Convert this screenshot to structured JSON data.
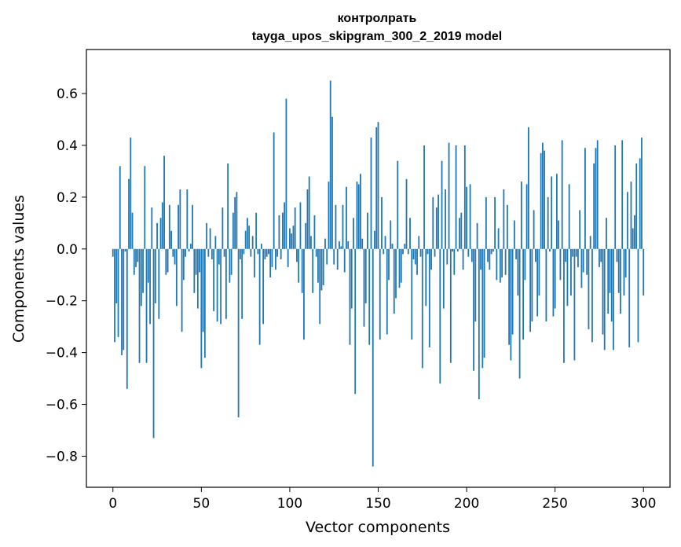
{
  "chart_data": {
    "type": "bar",
    "title": "контролрать",
    "subtitle": "tayga_upos_skipgram_300_2_2019 model",
    "xlabel": "Vector components",
    "ylabel": "Components values",
    "xlim": [
      -15,
      315
    ],
    "ylim": [
      -0.92,
      0.77
    ],
    "xticks": [
      0,
      50,
      100,
      150,
      200,
      250,
      300
    ],
    "xtick_labels": [
      "0",
      "50",
      "100",
      "150",
      "200",
      "250",
      "300"
    ],
    "yticks": [
      -0.8,
      -0.6,
      -0.4,
      -0.2,
      0.0,
      0.2,
      0.4,
      0.6
    ],
    "ytick_labels": [
      "−0.8",
      "−0.6",
      "−0.4",
      "−0.2",
      "0.0",
      "0.2",
      "0.4",
      "0.6"
    ],
    "grid": false,
    "bar_color": "#1f77b4",
    "series": [
      {
        "values": [
          -0.03,
          -0.36,
          -0.21,
          -0.34,
          0.32,
          -0.41,
          -0.39,
          -0.01,
          -0.54,
          0.27,
          0.43,
          0.14,
          -0.1,
          -0.07,
          -0.05,
          -0.44,
          -0.22,
          -0.17,
          0.32,
          -0.44,
          -0.13,
          -0.29,
          0.16,
          -0.73,
          -0.21,
          0.1,
          -0.27,
          0.12,
          0.18,
          0.36,
          -0.1,
          -0.09,
          0.17,
          0.07,
          -0.03,
          -0.06,
          -0.22,
          0.17,
          0.23,
          -0.32,
          -0.12,
          -0.03,
          0.23,
          -0.01,
          0.02,
          0.17,
          -0.17,
          -0.1,
          -0.23,
          -0.09,
          -0.46,
          -0.32,
          -0.42,
          0.1,
          -0.03,
          0.08,
          -0.04,
          -0.24,
          0.05,
          -0.28,
          -0.06,
          -0.29,
          0.16,
          -0.03,
          -0.27,
          0.33,
          -0.13,
          -0.1,
          0.14,
          0.2,
          0.22,
          -0.65,
          -0.04,
          -0.27,
          -0.02,
          0.07,
          0.12,
          0.09,
          -0.03,
          0.05,
          -0.11,
          0.14,
          -0.02,
          -0.37,
          0.02,
          -0.29,
          -0.04,
          -0.03,
          -0.02,
          -0.11,
          -0.07,
          0.45,
          -0.08,
          -0.03,
          0.13,
          -0.04,
          0.14,
          0.18,
          0.58,
          -0.07,
          0.08,
          0.06,
          0.09,
          0.16,
          -0.05,
          -0.13,
          0.18,
          -0.17,
          -0.35,
          0.1,
          0.23,
          0.28,
          0.05,
          -0.17,
          0.13,
          -0.03,
          -0.13,
          -0.29,
          -0.16,
          -0.14,
          0.04,
          -0.06,
          0.26,
          0.65,
          0.51,
          -0.06,
          0.17,
          -0.08,
          0.03,
          0.01,
          0.17,
          -0.09,
          0.24,
          0.03,
          -0.37,
          -0.23,
          0.12,
          -0.56,
          0.26,
          0.25,
          0.29,
          0.04,
          -0.3,
          -0.21,
          0.14,
          -0.37,
          0.43,
          -0.84,
          0.07,
          0.47,
          0.49,
          -0.35,
          0.2,
          -0.02,
          0.05,
          -0.33,
          -0.12,
          0.11,
          0.02,
          -0.25,
          -0.19,
          0.34,
          -0.15,
          -0.13,
          -0.02,
          0.02,
          0.27,
          -0.02,
          0.12,
          -0.35,
          -0.04,
          -0.06,
          -0.1,
          0.05,
          -0.03,
          -0.46,
          0.4,
          -0.22,
          -0.02,
          -0.38,
          -0.08,
          0.2,
          -0.03,
          0.16,
          0.21,
          -0.52,
          0.34,
          -0.23,
          0.23,
          -0.06,
          0.41,
          -0.44,
          -0.01,
          -0.1,
          0.4,
          -0.01,
          0.12,
          0.14,
          -0.08,
          0.4,
          0.24,
          -0.03,
          0.25,
          -0.05,
          -0.47,
          -0.28,
          0.1,
          -0.58,
          -0.08,
          -0.46,
          -0.42,
          0.2,
          -0.05,
          -0.08,
          -0.02,
          -0.01,
          0.2,
          -0.12,
          0.08,
          -0.13,
          -0.11,
          0.23,
          -0.1,
          0.17,
          -0.37,
          -0.43,
          -0.33,
          0.11,
          -0.04,
          -0.18,
          -0.5,
          0.26,
          -0.35,
          -0.12,
          0.25,
          0.47,
          -0.32,
          -0.28,
          0.15,
          -0.05,
          -0.26,
          -0.18,
          0.37,
          0.41,
          0.38,
          -0.28,
          0.2,
          -0.01,
          0.28,
          -0.26,
          -0.23,
          0.29,
          0.11,
          -0.12,
          0.42,
          -0.44,
          -0.05,
          -0.22,
          0.25,
          -0.18,
          -0.03,
          -0.43,
          -0.03,
          -0.07,
          0.15,
          -0.15,
          -0.09,
          0.39,
          -0.1,
          -0.31,
          0.05,
          -0.36,
          0.33,
          0.39,
          0.42,
          -0.07,
          -0.05,
          -0.33,
          -0.39,
          0.12,
          -0.25,
          -0.17,
          -0.28,
          -0.39,
          0.4,
          -0.05,
          -0.17,
          -0.25,
          0.42,
          -0.18,
          -0.11,
          0.22,
          -0.38,
          0.26,
          0.08,
          0.13,
          0.33,
          -0.36,
          0.35,
          0.43,
          -0.18
        ]
      }
    ]
  }
}
